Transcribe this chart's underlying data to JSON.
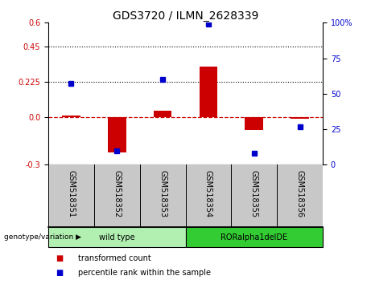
{
  "title": "GDS3720 / ILMN_2628339",
  "samples": [
    "GSM518351",
    "GSM518352",
    "GSM518353",
    "GSM518354",
    "GSM518355",
    "GSM518356"
  ],
  "transformed_count": [
    0.01,
    -0.22,
    0.04,
    0.32,
    -0.08,
    -0.01
  ],
  "percentile_rank": [
    57,
    10,
    60,
    99,
    8,
    27
  ],
  "ylim_left": [
    -0.3,
    0.6
  ],
  "ylim_right": [
    0,
    100
  ],
  "yticks_left": [
    -0.3,
    0.0,
    0.225,
    0.45,
    0.6
  ],
  "yticks_right": [
    0,
    25,
    50,
    75,
    100
  ],
  "hlines": [
    0.225,
    0.45
  ],
  "bar_color": "#cc0000",
  "dot_color": "#0000cc",
  "zero_line_color": "#cc0000",
  "zero_line_style": "--",
  "hline_color": "#000000",
  "hline_style": ":",
  "group_labels": [
    "wild type",
    "RORalpha1delDE"
  ],
  "group_ranges": [
    [
      0,
      3
    ],
    [
      3,
      6
    ]
  ],
  "group_colors_light": "#b2f0b2",
  "group_colors_dark": "#33cc33",
  "genotype_label": "genotype/variation",
  "legend_items": [
    "transformed count",
    "percentile rank within the sample"
  ],
  "legend_colors": [
    "#cc0000",
    "#0000cc"
  ],
  "background_plot": "#ffffff",
  "background_sample": "#c8c8c8",
  "title_fontsize": 10,
  "axis_fontsize": 7,
  "tick_fontsize": 7,
  "bar_width": 0.4
}
